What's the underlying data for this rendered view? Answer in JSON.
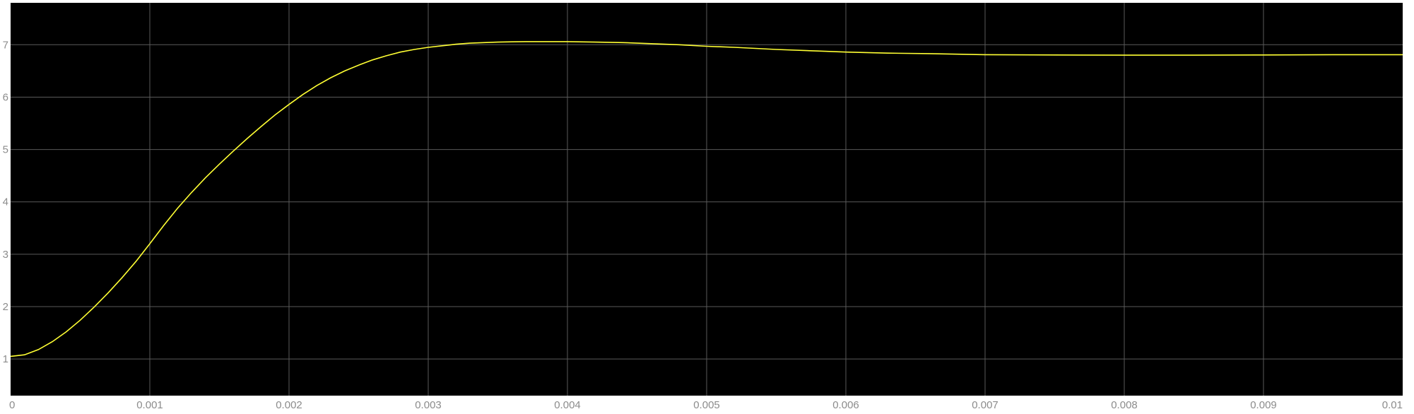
{
  "chart_data": {
    "type": "line",
    "title": "",
    "xlabel": "",
    "ylabel": "",
    "xlim": [
      0,
      0.01
    ],
    "ylim": [
      0.3,
      7.8
    ],
    "x_ticks": [
      0,
      0.001,
      0.002,
      0.003,
      0.004,
      0.005,
      0.006,
      0.007,
      0.008,
      0.009,
      0.01
    ],
    "x_tick_labels": [
      "0",
      "0.001",
      "0.002",
      "0.003",
      "0.004",
      "0.005",
      "0.006",
      "0.007",
      "0.008",
      "0.009",
      "0.01"
    ],
    "y_ticks": [
      1,
      2,
      3,
      4,
      5,
      6,
      7
    ],
    "y_tick_labels": [
      "1",
      "2",
      "3",
      "4",
      "5",
      "6",
      "7"
    ],
    "grid": true,
    "legend": "none",
    "colors": {
      "plot_background": "#000000",
      "grid": "#5a5a5a",
      "axis_text": "#8c8c8c",
      "line": "#ffff33"
    },
    "series": [
      {
        "x": [
          0,
          0.0001,
          0.0002,
          0.0003,
          0.0004,
          0.0005,
          0.0006,
          0.0007,
          0.0008,
          0.0009,
          0.001,
          0.0011,
          0.0012,
          0.0013,
          0.0014,
          0.0015,
          0.0016,
          0.0017,
          0.0018,
          0.0019,
          0.002,
          0.0021,
          0.0022,
          0.0023,
          0.0024,
          0.0025,
          0.0026,
          0.0027,
          0.0028,
          0.0029,
          0.003,
          0.0031,
          0.0032,
          0.0033,
          0.0034,
          0.0035,
          0.0036,
          0.0037,
          0.0038,
          0.0039,
          0.004,
          0.0042,
          0.0044,
          0.0046,
          0.0048,
          0.005,
          0.0052,
          0.0055,
          0.0058,
          0.006,
          0.0063,
          0.0066,
          0.007,
          0.0075,
          0.008,
          0.0085,
          0.009,
          0.0095,
          0.01
        ],
        "values": [
          1.05,
          1.08,
          1.18,
          1.33,
          1.52,
          1.74,
          1.99,
          2.26,
          2.55,
          2.86,
          3.2,
          3.55,
          3.88,
          4.18,
          4.46,
          4.72,
          4.97,
          5.21,
          5.44,
          5.66,
          5.86,
          6.05,
          6.22,
          6.37,
          6.5,
          6.61,
          6.71,
          6.79,
          6.86,
          6.91,
          6.95,
          6.98,
          7.01,
          7.03,
          7.04,
          7.05,
          7.055,
          7.06,
          7.06,
          7.06,
          7.06,
          7.05,
          7.04,
          7.02,
          7.0,
          6.97,
          6.95,
          6.91,
          6.88,
          6.86,
          6.84,
          6.83,
          6.81,
          6.805,
          6.8,
          6.8,
          6.805,
          6.81,
          6.81
        ]
      }
    ]
  }
}
